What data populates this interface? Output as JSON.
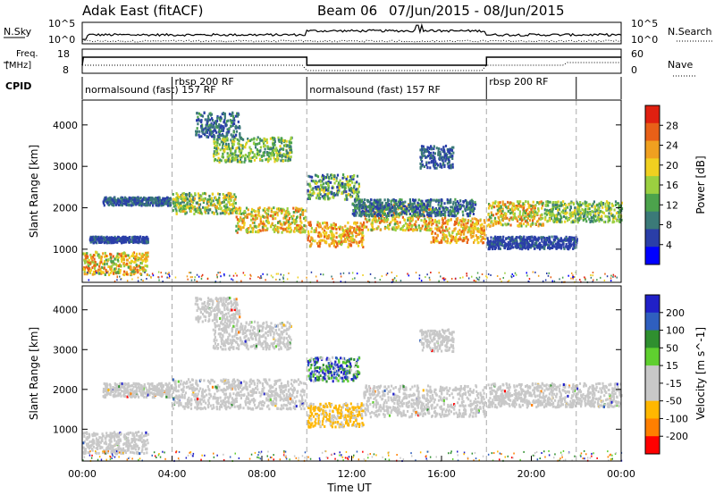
{
  "title": {
    "radar": "Adak East (fitACF)",
    "beam": "Beam 06",
    "date_range": "07/Jun/2015 - 08/Jun/2015"
  },
  "noise_panel": {
    "left_label": "N.Sky",
    "right_label": "N.Search",
    "left_ticks": [
      "10^5",
      "10^0"
    ],
    "right_ticks": [
      "10^5",
      "10^0"
    ]
  },
  "freq_panel": {
    "left_label_1": "Freq.",
    "left_label_2": "[MHz]",
    "right_label": "Nave",
    "left_ticks": [
      "18",
      "8"
    ],
    "right_ticks": [
      "60",
      "0"
    ]
  },
  "cpid_panel": {
    "label": "CPID",
    "segments": [
      {
        "start_hour": 0.0,
        "end_hour": 4.0,
        "text": "normalsound (fast) 157 RF"
      },
      {
        "start_hour": 4.0,
        "end_hour": 10.0,
        "text": "rbsp 200 RF"
      },
      {
        "start_hour": 10.0,
        "end_hour": 18.0,
        "text": "normalsound (fast) 157 RF"
      },
      {
        "start_hour": 18.0,
        "end_hour": 22.0,
        "text": "rbsp 200 RF"
      }
    ]
  },
  "colors": {
    "power": [
      "#0000ff",
      "#2a3ea8",
      "#3b7a78",
      "#4ca34c",
      "#9bd040",
      "#f0d020",
      "#f0a020",
      "#e86018",
      "#e02010"
    ],
    "velocity": [
      "#ff0000",
      "#ff7f00",
      "#ffb700",
      "#c8c8c8",
      "#c8c8c8",
      "#5fcf2f",
      "#2f8f2f",
      "#2f5fbf",
      "#2020c8"
    ]
  },
  "chart_data": [
    {
      "type": "heatmap",
      "panel": "power",
      "ylabel": "Slant Range [km]",
      "ylim": [
        200,
        4600
      ],
      "y_ticks": [
        1000,
        2000,
        3000,
        4000
      ],
      "x_range_hours": [
        0,
        24
      ],
      "colorbar_label": "Power [dB]",
      "colorbar_ticks": [
        "4",
        "8",
        "12",
        "16",
        "20",
        "24",
        "28"
      ],
      "bands": [
        {
          "t": [
            0.0,
            2.9
          ],
          "r": [
            380,
            930
          ],
          "p": [
            12,
            28
          ]
        },
        {
          "t": [
            0.9,
            3.9
          ],
          "r": [
            2050,
            2250
          ],
          "p": [
            4,
            10
          ]
        },
        {
          "t": [
            0.3,
            2.9
          ],
          "r": [
            1150,
            1300
          ],
          "p": [
            4,
            8
          ]
        },
        {
          "t": [
            4.0,
            6.8
          ],
          "r": [
            1850,
            2350
          ],
          "p": [
            8,
            24
          ]
        },
        {
          "t": [
            6.8,
            9.9
          ],
          "r": [
            1400,
            2000
          ],
          "p": [
            12,
            28
          ]
        },
        {
          "t": [
            5.8,
            9.3
          ],
          "r": [
            3100,
            3700
          ],
          "p": [
            8,
            20
          ]
        },
        {
          "t": [
            5.0,
            7.0
          ],
          "r": [
            3700,
            4300
          ],
          "p": [
            4,
            12
          ]
        },
        {
          "t": [
            10.0,
            12.5
          ],
          "r": [
            1050,
            1650
          ],
          "p": [
            16,
            28
          ]
        },
        {
          "t": [
            12.5,
            15.5
          ],
          "r": [
            1450,
            2100
          ],
          "p": [
            12,
            28
          ]
        },
        {
          "t": [
            15.5,
            17.9
          ],
          "r": [
            1150,
            1750
          ],
          "p": [
            16,
            28
          ]
        },
        {
          "t": [
            10.0,
            12.3
          ],
          "r": [
            2200,
            2800
          ],
          "p": [
            4,
            20
          ]
        },
        {
          "t": [
            12.0,
            17.5
          ],
          "r": [
            1800,
            2200
          ],
          "p": [
            4,
            12
          ]
        },
        {
          "t": [
            15.0,
            16.5
          ],
          "r": [
            2950,
            3500
          ],
          "p": [
            4,
            10
          ]
        },
        {
          "t": [
            18.0,
            20.5
          ],
          "r": [
            1550,
            2150
          ],
          "p": [
            12,
            28
          ]
        },
        {
          "t": [
            20.5,
            24.0
          ],
          "r": [
            1650,
            2150
          ],
          "p": [
            8,
            20
          ]
        },
        {
          "t": [
            18.0,
            22.0
          ],
          "r": [
            1000,
            1300
          ],
          "p": [
            4,
            8
          ]
        }
      ]
    },
    {
      "type": "heatmap",
      "panel": "velocity",
      "ylabel": "Slant Range [km]",
      "xlabel": "Time UT",
      "ylim": [
        200,
        4600
      ],
      "y_ticks": [
        1000,
        2000,
        3000,
        4000
      ],
      "x_range_hours": [
        0,
        24
      ],
      "x_tick_labels": [
        "00:00",
        "04:00",
        "08:00",
        "12:00",
        "16:00",
        "20:00",
        "00:00"
      ],
      "colorbar_label": "Velocity [m s^-1]",
      "colorbar_ticks": [
        "-200",
        "-100",
        "-50",
        "-15",
        "15",
        "50",
        "100",
        "200"
      ],
      "bands": [
        {
          "t": [
            0.0,
            2.9
          ],
          "r": [
            380,
            930
          ],
          "v": "gray"
        },
        {
          "t": [
            0.9,
            3.9
          ],
          "r": [
            1800,
            2150
          ],
          "v": "gray"
        },
        {
          "t": [
            4.0,
            9.9
          ],
          "r": [
            1500,
            2250
          ],
          "v": "gray"
        },
        {
          "t": [
            5.8,
            9.3
          ],
          "r": [
            3000,
            3700
          ],
          "v": "gray"
        },
        {
          "t": [
            5.0,
            7.0
          ],
          "r": [
            3700,
            4300
          ],
          "v": "gray"
        },
        {
          "t": [
            10.0,
            12.5
          ],
          "r": [
            1050,
            1650
          ],
          "v": "orange"
        },
        {
          "t": [
            12.5,
            17.9
          ],
          "r": [
            1300,
            2100
          ],
          "v": "gray"
        },
        {
          "t": [
            10.0,
            12.3
          ],
          "r": [
            2200,
            2800
          ],
          "v": "mixed"
        },
        {
          "t": [
            18.0,
            24.0
          ],
          "r": [
            1550,
            2150
          ],
          "v": "gray"
        },
        {
          "t": [
            15.0,
            16.5
          ],
          "r": [
            2950,
            3500
          ],
          "v": "gray"
        }
      ]
    }
  ],
  "noise_series": {
    "sky_level": [
      0.45,
      0.45,
      0.5,
      0.35,
      0.3,
      0.35
    ],
    "nave_dotted_level": 0.15
  }
}
